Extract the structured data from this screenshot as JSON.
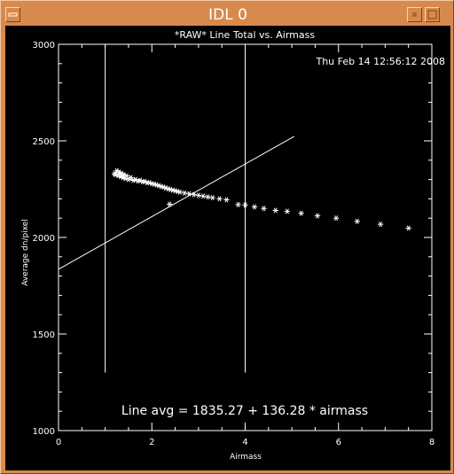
{
  "window": {
    "title": "IDL 0",
    "buttons": [
      "window-menu-icon",
      "minimize-icon",
      "maximize-icon"
    ]
  },
  "chart_data": {
    "type": "scatter",
    "title": "*RAW* Line Total vs. Airmass",
    "timestamp": "Thu Feb 14 12:56:12 2008",
    "xlabel": "Airmass",
    "ylabel": "Average dn/pixel",
    "xlim": [
      0,
      8
    ],
    "ylim": [
      1000,
      3000
    ],
    "x_ticks": [
      "0",
      "2",
      "4",
      "6",
      "8"
    ],
    "y_ticks": [
      "1000",
      "1500",
      "2000",
      "2500",
      "3000"
    ],
    "grid": false,
    "series": [
      {
        "marker": "asterisk",
        "points": [
          [
            1.2,
            2330
          ],
          [
            1.22,
            2325
          ],
          [
            1.25,
            2345
          ],
          [
            1.28,
            2320
          ],
          [
            1.3,
            2338
          ],
          [
            1.33,
            2315
          ],
          [
            1.35,
            2332
          ],
          [
            1.38,
            2310
          ],
          [
            1.4,
            2325
          ],
          [
            1.43,
            2305
          ],
          [
            1.46,
            2318
          ],
          [
            1.5,
            2300
          ],
          [
            1.55,
            2310
          ],
          [
            1.6,
            2296
          ],
          [
            1.65,
            2300
          ],
          [
            1.7,
            2292
          ],
          [
            1.75,
            2296
          ],
          [
            1.8,
            2288
          ],
          [
            1.85,
            2290
          ],
          [
            1.9,
            2283
          ],
          [
            1.95,
            2284
          ],
          [
            2.0,
            2278
          ],
          [
            2.05,
            2276
          ],
          [
            2.1,
            2272
          ],
          [
            2.15,
            2268
          ],
          [
            2.2,
            2264
          ],
          [
            2.25,
            2261
          ],
          [
            2.3,
            2256
          ],
          [
            2.35,
            2252
          ],
          [
            2.4,
            2248
          ],
          [
            2.45,
            2245
          ],
          [
            2.5,
            2242
          ],
          [
            2.55,
            2238
          ],
          [
            2.6,
            2235
          ],
          [
            2.7,
            2230
          ],
          [
            2.8,
            2226
          ],
          [
            2.9,
            2222
          ],
          [
            3.0,
            2218
          ],
          [
            3.1,
            2214
          ],
          [
            3.2,
            2210
          ],
          [
            3.3,
            2206
          ],
          [
            3.45,
            2200
          ],
          [
            3.6,
            2195
          ],
          [
            2.38,
            2172
          ],
          [
            3.85,
            2170
          ],
          [
            4.0,
            2168
          ],
          [
            4.2,
            2158
          ],
          [
            4.4,
            2150
          ],
          [
            4.65,
            2140
          ],
          [
            4.9,
            2135
          ],
          [
            5.2,
            2125
          ],
          [
            5.55,
            2112
          ],
          [
            5.95,
            2100
          ],
          [
            6.4,
            2083
          ],
          [
            6.9,
            2068
          ],
          [
            7.5,
            2048
          ]
        ]
      }
    ],
    "fit_line": {
      "intercept": 1835.27,
      "slope": 136.28,
      "x_range": [
        0,
        5.05
      ]
    },
    "vertical_markers": [
      1.0,
      4.0
    ],
    "annotation": "Line avg = 1835.27 + 136.28 * airmass"
  }
}
